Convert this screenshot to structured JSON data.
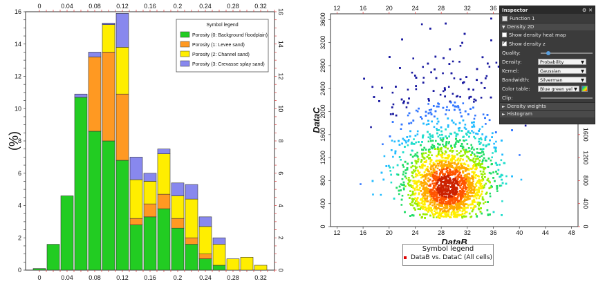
{
  "chart_data": [
    {
      "type": "bar",
      "stacked": true,
      "ylabel": "(%)",
      "xlim": [
        -0.02,
        0.34
      ],
      "ylim": [
        0,
        16
      ],
      "x_ticks": [
        0,
        0.04,
        0.08,
        0.12,
        0.16,
        0.2,
        0.24,
        0.28,
        0.32
      ],
      "y_ticks": [
        0,
        2,
        4,
        6,
        8,
        10,
        12,
        14,
        16
      ],
      "bin_width": 0.02,
      "x": [
        0,
        0.02,
        0.04,
        0.06,
        0.08,
        0.1,
        0.12,
        0.14,
        0.16,
        0.18,
        0.2,
        0.22,
        0.24,
        0.26,
        0.28,
        0.3,
        0.32
      ],
      "series": [
        {
          "name": "Porosity (0: Background floodplain)",
          "color": "#22cc22",
          "values": [
            0.1,
            1.6,
            4.6,
            10.7,
            8.6,
            8.0,
            6.8,
            2.8,
            3.3,
            3.8,
            2.6,
            1.6,
            0.7,
            0.3,
            0,
            0,
            0
          ]
        },
        {
          "name": "Porosity (1: Levee sand)",
          "color": "#ff9922",
          "values": [
            0,
            0,
            0,
            0,
            4.6,
            5.5,
            4.1,
            0.4,
            0.8,
            0.9,
            0.6,
            0.4,
            0.3,
            0,
            0,
            0,
            0
          ]
        },
        {
          "name": "Porosity (2: Channel sand)",
          "color": "#ffee00",
          "values": [
            0,
            0,
            0,
            0,
            0.0,
            1.7,
            2.9,
            2.4,
            1.4,
            2.5,
            1.4,
            2.4,
            1.7,
            1.3,
            0.7,
            0.8,
            0.3
          ]
        },
        {
          "name": "Porosity (3: Crevasse splay sand)",
          "color": "#8888ee",
          "values": [
            0,
            0,
            0,
            0.2,
            0.3,
            0.1,
            2.1,
            1.4,
            0.5,
            0.3,
            0.8,
            0.9,
            0.6,
            0.4,
            0,
            0,
            0
          ]
        }
      ],
      "legend": {
        "title": "Symbol legend",
        "placement": "top-right"
      }
    },
    {
      "type": "scatter",
      "subtype": "density",
      "xlabel": "DataB",
      "ylabel": "DataC",
      "xlim": [
        11,
        49
      ],
      "ylim": [
        0,
        3700
      ],
      "x_ticks": [
        12,
        16,
        20,
        24,
        28,
        32,
        36,
        40,
        44,
        48
      ],
      "y_ticks": [
        0,
        400,
        800,
        1200,
        1600,
        2000,
        2400,
        2800,
        3200,
        3600
      ],
      "density_center": {
        "x": 29,
        "y": 700
      },
      "color_table": "Blue green yellow red",
      "legend": {
        "title": "Symbol legend",
        "entry": "DataB vs. DataC (All cells)",
        "placement": "bottom"
      }
    }
  ],
  "inspector": {
    "title": "Inspector",
    "function_name": "Function 1",
    "sections": {
      "density2d": "Density 2D",
      "density_weights": "Density weights",
      "histogram": "Histogram"
    },
    "show_heatmap_label": "Show density heat map",
    "show_z_label": "Show density z",
    "quality_label": "Quality:",
    "density_label": "Density:",
    "density_value": "Probability",
    "kernel_label": "Kernel:",
    "kernel_value": "Gaussian",
    "bandwidth_label": "Bandwidth:",
    "bandwidth_value": "Silverman",
    "color_table_label": "Color table:",
    "color_table_value": "Blue green yel",
    "clip_label": "Clip:",
    "quality_level": 0.1,
    "colors": {
      "bg": "#3b3b3b",
      "header": "#2a2a2a"
    }
  }
}
